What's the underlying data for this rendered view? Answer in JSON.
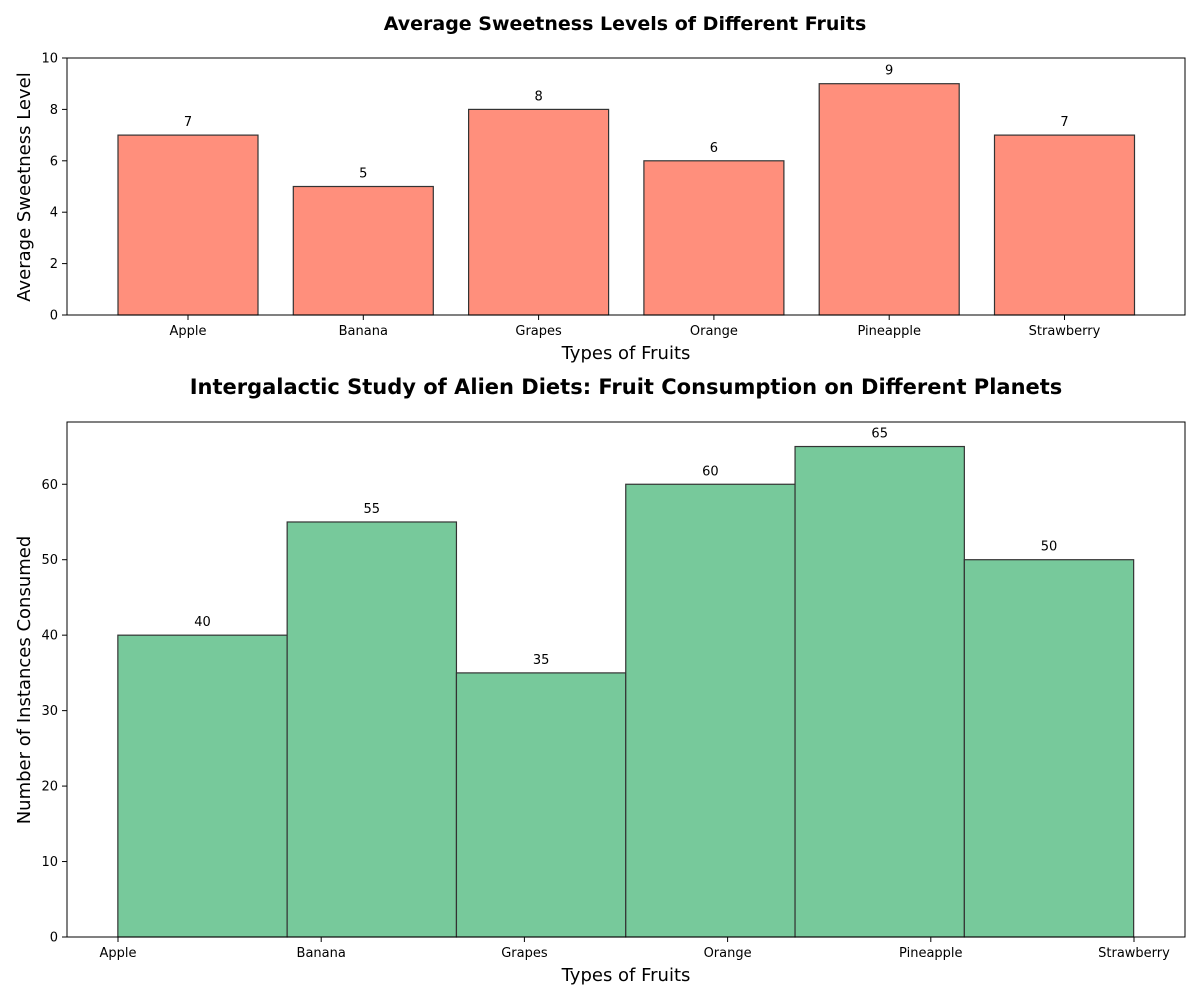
{
  "chart_data": [
    {
      "type": "bar",
      "title": "Average Sweetness Levels of Different Fruits",
      "xlabel": "Types of Fruits",
      "ylabel": "Average Sweetness Level",
      "categories": [
        "Apple",
        "Banana",
        "Grapes",
        "Orange",
        "Pineapple",
        "Strawberry"
      ],
      "values": [
        7,
        5,
        8,
        6,
        9,
        7
      ],
      "ylim": [
        0,
        10
      ],
      "yticks": [
        0,
        2,
        4,
        6,
        8,
        10
      ],
      "bar_color": "#ff8f7c",
      "edge_color": "#333333",
      "grid": false
    },
    {
      "type": "bar",
      "title": "Intergalactic Study of Alien Diets: Fruit Consumption on Different Planets",
      "xlabel": "Types of Fruits",
      "ylabel": "Number of Instances Consumed",
      "categories": [
        "Apple",
        "Banana",
        "Grapes",
        "Orange",
        "Pineapple",
        "Strawberry"
      ],
      "values": [
        40,
        55,
        35,
        60,
        65,
        50
      ],
      "ylim": [
        0,
        68.25
      ],
      "yticks": [
        0,
        10,
        20,
        30,
        40,
        50,
        60
      ],
      "bar_color": "#77c99b",
      "edge_color": "#333333",
      "grid": false
    }
  ]
}
